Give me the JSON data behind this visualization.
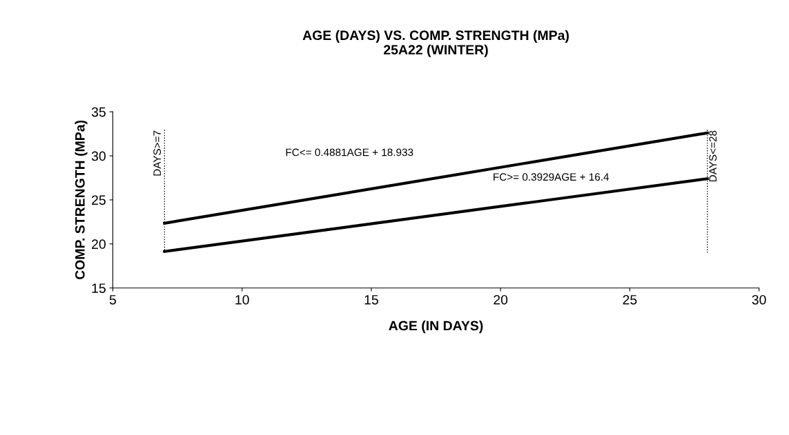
{
  "chart_data": {
    "type": "line",
    "title": "AGE (DAYS) VS. COMP. STRENGTH (MPa)\n25A22 (WINTER)",
    "xlabel": "AGE (IN DAYS)",
    "ylabel": "COMP. STRENGTH (MPa)",
    "series": [
      {
        "color": "#000000",
        "values": [
          22.35,
          32.6
        ]
      },
      {
        "color": "#000000",
        "values": [
          19.15,
          27.4
        ]
      }
    ],
    "x": [
      7,
      28
    ],
    "xlim": [
      5,
      30
    ],
    "xticks": [
      5,
      10,
      15,
      20,
      25,
      30
    ],
    "ylim": [
      15,
      35
    ],
    "yticks": [
      15,
      20,
      25,
      30,
      35
    ],
    "grid": false,
    "marker": "none",
    "line_style": "solid",
    "ref_lines": [
      {
        "axis": "x",
        "value": 7,
        "label": "DAYS>=7",
        "color": "#000000",
        "line_style": "dotted"
      },
      {
        "axis": "x",
        "value": 28,
        "label": "DAYS<=28",
        "color": "#000000",
        "line_style": "dotted"
      }
    ],
    "annotations": [
      "FC<= 0.4881AGE + 18.933",
      "FC>= 0.3929AGE + 16.4"
    ]
  }
}
